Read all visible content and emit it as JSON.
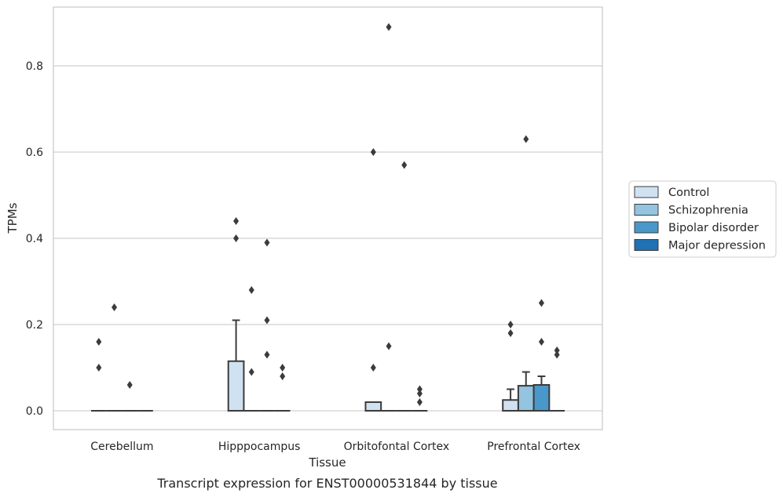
{
  "chart_data": {
    "type": "box",
    "title": "",
    "caption": "Transcript expression for ENST00000531844 by tissue",
    "xlabel": "Tissue",
    "ylabel": "TPMs",
    "ylim": [
      -0.043,
      0.935
    ],
    "yticks": [
      "0.0",
      "0.2",
      "0.4",
      "0.6",
      "0.8"
    ],
    "categories": [
      "Cerebellum",
      "Hipppocampus",
      "Orbitofontal Cortex",
      "Prefrontal Cortex"
    ],
    "grid": true,
    "legend_position": "right",
    "series": [
      {
        "name": "Control",
        "color": "#d0e1f2",
        "boxes": [
          {
            "q1": 0,
            "median": 0,
            "q3": 0,
            "whisker_low": 0,
            "whisker_high": 0,
            "outliers": [
              0.16,
              0.1
            ]
          },
          {
            "q1": 0,
            "median": 0,
            "q3": 0.115,
            "whisker_low": 0,
            "whisker_high": 0.21,
            "outliers": [
              0.44,
              0.4
            ]
          },
          {
            "q1": 0,
            "median": 0,
            "q3": 0.02,
            "whisker_low": 0,
            "whisker_high": 0.02,
            "outliers": [
              0.6,
              0.1
            ]
          },
          {
            "q1": 0,
            "median": 0,
            "q3": 0.025,
            "whisker_low": 0,
            "whisker_high": 0.05,
            "outliers": [
              0.2,
              0.18
            ]
          }
        ]
      },
      {
        "name": "Schizophrenia",
        "color": "#94c4df",
        "boxes": [
          {
            "q1": 0,
            "median": 0,
            "q3": 0,
            "whisker_low": 0,
            "whisker_high": 0,
            "outliers": [
              0.24
            ]
          },
          {
            "q1": 0,
            "median": 0,
            "q3": 0,
            "whisker_low": 0,
            "whisker_high": 0,
            "outliers": [
              0.28,
              0.09
            ]
          },
          {
            "q1": 0,
            "median": 0,
            "q3": 0,
            "whisker_low": 0,
            "whisker_high": 0,
            "outliers": [
              0.89,
              0.15
            ]
          },
          {
            "q1": 0,
            "median": 0,
            "q3": 0.058,
            "whisker_low": 0,
            "whisker_high": 0.09,
            "outliers": [
              0.63
            ]
          }
        ]
      },
      {
        "name": "Bipolar disorder",
        "color": "#4a98c9",
        "boxes": [
          {
            "q1": 0,
            "median": 0,
            "q3": 0,
            "whisker_low": 0,
            "whisker_high": 0,
            "outliers": [
              0.06
            ]
          },
          {
            "q1": 0,
            "median": 0,
            "q3": 0,
            "whisker_low": 0,
            "whisker_high": 0,
            "outliers": [
              0.39,
              0.21,
              0.13
            ]
          },
          {
            "q1": 0,
            "median": 0,
            "q3": 0,
            "whisker_low": 0,
            "whisker_high": 0,
            "outliers": [
              0.57
            ]
          },
          {
            "q1": 0,
            "median": 0,
            "q3": 0.06,
            "whisker_low": 0,
            "whisker_high": 0.08,
            "outliers": [
              0.25,
              0.16
            ]
          }
        ]
      },
      {
        "name": "Major depression",
        "color": "#2171b5",
        "boxes": [
          {
            "q1": 0,
            "median": 0,
            "q3": 0,
            "whisker_low": 0,
            "whisker_high": 0,
            "outliers": []
          },
          {
            "q1": 0,
            "median": 0,
            "q3": 0,
            "whisker_low": 0,
            "whisker_high": 0,
            "outliers": [
              0.1,
              0.08
            ]
          },
          {
            "q1": 0,
            "median": 0,
            "q3": 0,
            "whisker_low": 0,
            "whisker_high": 0,
            "outliers": [
              0.05,
              0.04,
              0.02
            ]
          },
          {
            "q1": 0,
            "median": 0,
            "q3": 0,
            "whisker_low": 0,
            "whisker_high": 0,
            "outliers": [
              0.14,
              0.13
            ]
          }
        ]
      }
    ]
  }
}
